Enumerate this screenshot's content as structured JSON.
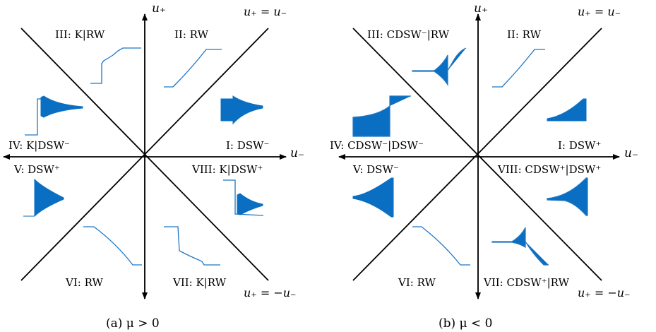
{
  "colors": {
    "axis": "#000000",
    "wave": "#1f77c4",
    "wave_fill": "#0a6fc2"
  },
  "panels": [
    {
      "id": "a",
      "caption": "(a) μ > 0",
      "axes": {
        "x_label": "u₋",
        "y_label": "u₊"
      },
      "diagonals": {
        "main": "u₊ = u₋",
        "anti": "u₊ = −u₋"
      },
      "regions": {
        "I": "I: DSW⁻",
        "II": "II: RW",
        "III": "III: K|RW",
        "IV": "IV: K|DSW⁻",
        "V": "V: DSW⁺",
        "VI": "VI: RW",
        "VII": "VII: K|RW",
        "VIII": "VIII: K|DSW⁺"
      }
    },
    {
      "id": "b",
      "caption": "(b) μ < 0",
      "axes": {
        "x_label": "u₋",
        "y_label": "u₊"
      },
      "diagonals": {
        "main": "u₊ = u₋",
        "anti": "u₊ = −u₋"
      },
      "regions": {
        "I": "I: DSW⁺",
        "II": "II: RW",
        "III": "III: CDSW⁻|RW",
        "IV": "IV: CDSW⁻|DSW⁻",
        "V": "V: DSW⁻",
        "VI": "VI: RW",
        "VII": "VII: CDSW⁺|RW",
        "VIII": "VIII: CDSW⁺|DSW⁺"
      }
    }
  ]
}
